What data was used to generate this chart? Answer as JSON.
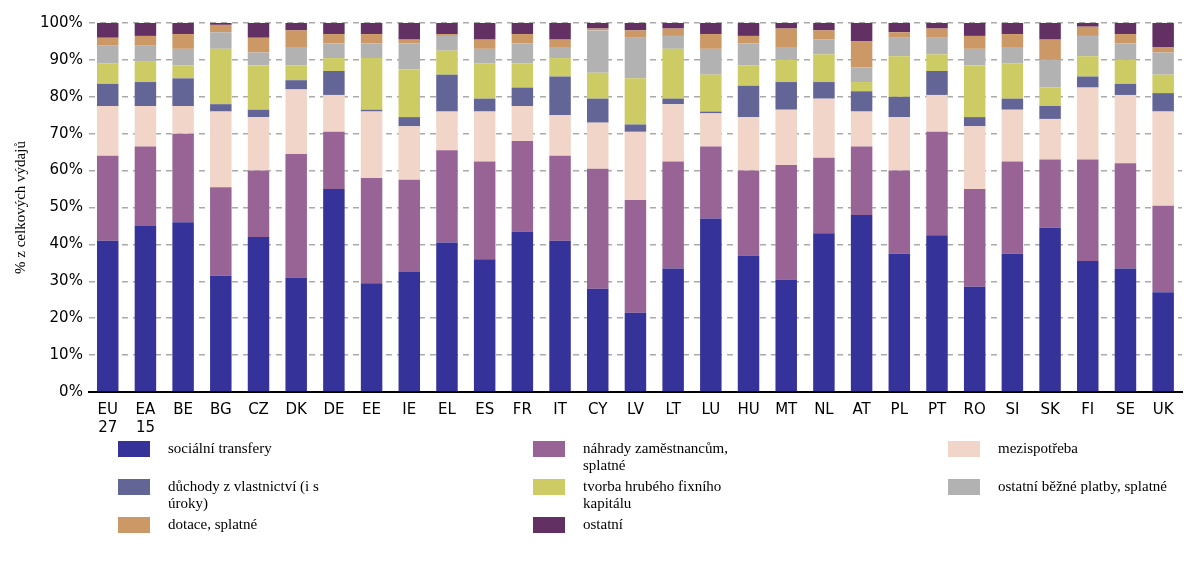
{
  "chart_data": {
    "type": "bar",
    "stacked": true,
    "ylabel": "% z celkových výdajů",
    "categories": [
      "EU 27",
      "EA 15",
      "BE",
      "BG",
      "CZ",
      "DK",
      "DE",
      "EE",
      "IE",
      "EL",
      "ES",
      "FR",
      "IT",
      "CY",
      "LV",
      "LT",
      "LU",
      "HU",
      "MT",
      "NL",
      "AT",
      "PL",
      "PT",
      "RO",
      "SI",
      "SK",
      "FI",
      "SE",
      "UK"
    ],
    "series": [
      {
        "name": "sociální transfery",
        "color": "#353399",
        "values": [
          41,
          45,
          46,
          31.5,
          42,
          31,
          55,
          29.5,
          32.5,
          40.5,
          36,
          43.5,
          41,
          28,
          21.5,
          33.5,
          47,
          37,
          30.5,
          43,
          48,
          37.5,
          42.5,
          28.5,
          37.5,
          44.5,
          35.5,
          33.5,
          27
        ]
      },
      {
        "name": "náhrady zaměstnancům, splatné",
        "color": "#986496",
        "values": [
          23,
          21.5,
          24,
          24,
          18,
          33.5,
          15.5,
          28.5,
          25,
          25,
          26.5,
          24.5,
          23,
          32.5,
          30.5,
          29,
          19.5,
          23,
          31,
          20.5,
          18.5,
          22.5,
          28,
          26.5,
          25,
          18.5,
          27.5,
          28.5,
          23.5
        ]
      },
      {
        "name": "mezispotřeba",
        "color": "#f0d5c8",
        "values": [
          13.5,
          11,
          7.5,
          20.5,
          14.5,
          17.5,
          10,
          18,
          14.5,
          10.5,
          13.5,
          9.5,
          11,
          12.5,
          18.5,
          15.5,
          9,
          14.5,
          15,
          16,
          9.5,
          14.5,
          10,
          17,
          14,
          11,
          19.5,
          18.5,
          25.5
        ]
      },
      {
        "name": "důchody z vlastnictví (i s úroky)",
        "color": "#636597",
        "values": [
          6,
          6.5,
          7.5,
          2,
          2,
          2.5,
          6.5,
          0.5,
          2.5,
          10,
          3.5,
          5,
          10.5,
          6.5,
          2,
          1.5,
          0.5,
          8.5,
          7.5,
          4.5,
          5.5,
          5.5,
          6.5,
          2.5,
          3,
          3.5,
          3,
          3,
          5
        ]
      },
      {
        "name": "tvorba hrubého fixního kapitálu",
        "color": "#cccb64",
        "values": [
          5.5,
          5.5,
          3.5,
          15,
          12,
          4,
          3.5,
          14,
          13,
          6.5,
          9.5,
          6.5,
          5,
          7,
          12.5,
          13.5,
          10,
          5.5,
          6,
          7.5,
          2.5,
          11,
          4.5,
          14,
          9.5,
          5,
          5.5,
          6.5,
          5
        ]
      },
      {
        "name": "ostatní běžné platby, splatné",
        "color": "#b2b2b2",
        "values": [
          5,
          4.5,
          4.5,
          4.5,
          3.5,
          5,
          4,
          4,
          7,
          4,
          4,
          5.5,
          3,
          11.5,
          11,
          3.5,
          7,
          6,
          3.5,
          4,
          4,
          5,
          4.5,
          4.5,
          4.5,
          7.5,
          5.5,
          4.5,
          6
        ]
      },
      {
        "name": "dotace, splatné",
        "color": "#cc9865",
        "values": [
          2,
          2.5,
          4,
          2,
          4,
          4.5,
          2.5,
          2.5,
          1,
          0.5,
          2.5,
          2.5,
          2,
          0.5,
          2,
          2,
          4,
          2,
          5,
          2.5,
          7,
          1.5,
          2.5,
          3.5,
          3.5,
          5.5,
          2.5,
          2.5,
          1.5
        ]
      },
      {
        "name": "ostatní",
        "color": "#633063",
        "values": [
          4,
          3.5,
          3,
          0.5,
          4,
          2,
          3,
          3,
          4.5,
          3,
          4.5,
          3,
          4.5,
          1.5,
          2,
          1.5,
          3,
          3.5,
          1.5,
          2,
          5,
          2.5,
          1.5,
          3.5,
          3,
          4.5,
          1,
          3,
          6.5
        ]
      }
    ],
    "ylim": [
      0,
      100
    ],
    "yticks": [
      {
        "value": 0,
        "label": "0%"
      },
      {
        "value": 10,
        "label": "10%"
      },
      {
        "value": 20,
        "label": "20%"
      },
      {
        "value": 30,
        "label": "30%"
      },
      {
        "value": 40,
        "label": "40%"
      },
      {
        "value": 50,
        "label": "50%"
      },
      {
        "value": 60,
        "label": "60%"
      },
      {
        "value": 70,
        "label": "70%"
      },
      {
        "value": 80,
        "label": "80%"
      },
      {
        "value": 90,
        "label": "90%"
      },
      {
        "value": 100,
        "label": "100%"
      }
    ],
    "grid": "y",
    "legend": "bottom"
  }
}
